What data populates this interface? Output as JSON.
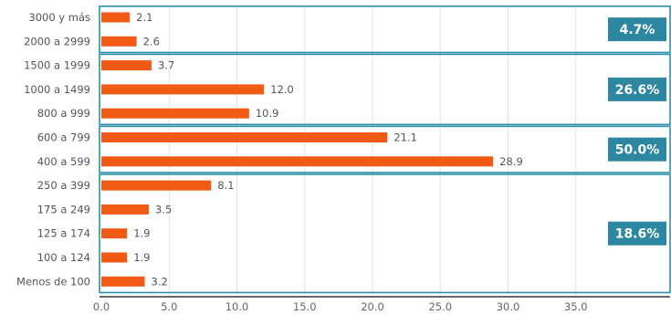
{
  "chart_data": {
    "type": "bar",
    "orientation": "horizontal",
    "categories": [
      "3000 y más",
      "2000 a 2999",
      "1500 a 1999",
      "1000 a 1499",
      "800 a 999",
      "600 a 799",
      "400 a 599",
      "250 a 399",
      "175 a 249",
      "125 a 174",
      "100 a 124",
      "Menos de 100"
    ],
    "values": [
      2.1,
      2.6,
      3.7,
      12.0,
      10.9,
      21.1,
      28.9,
      8.1,
      3.5,
      1.9,
      1.9,
      3.2
    ],
    "value_labels": [
      "2.1",
      "2.6",
      "3.7",
      "12.0",
      "10.9",
      "21.1",
      "28.9",
      "8.1",
      "3.5",
      "1.9",
      "1.9",
      "3.2"
    ],
    "xlim": [
      0,
      42
    ],
    "x_ticks": [
      "0.0",
      "5.0",
      "10.0",
      "15.0",
      "20.0",
      "25.0",
      "30.0",
      "35.0"
    ],
    "x_tick_values": [
      0,
      5,
      10,
      15,
      20,
      25,
      30,
      35
    ],
    "grid": true,
    "bar_color": "#f05a14",
    "group_border_color": "#2b8fa8",
    "badge_color": "#2e87a0",
    "groups": [
      {
        "start": 0,
        "end": 1,
        "label": "4.7%"
      },
      {
        "start": 2,
        "end": 4,
        "label": "26.6%"
      },
      {
        "start": 5,
        "end": 6,
        "label": "50.0%"
      },
      {
        "start": 7,
        "end": 11,
        "label": "18.6%"
      }
    ]
  }
}
